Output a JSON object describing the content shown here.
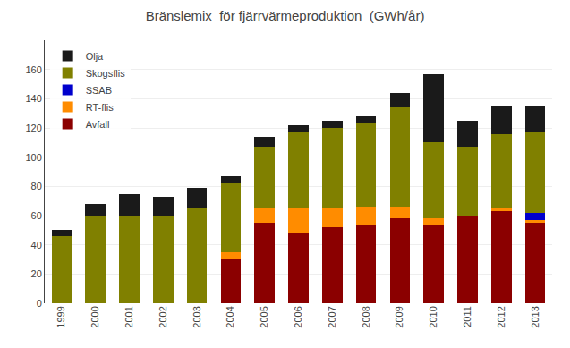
{
  "chart_data": {
    "type": "bar",
    "title": "Bränslemix  för fjärrvärmeproduktion  (GWh/år)",
    "categories": [
      "1999",
      "2000",
      "2001",
      "2002",
      "2003",
      "2004",
      "2005",
      "2006",
      "2007",
      "2008",
      "2009",
      "2010",
      "2011",
      "2012",
      "2013"
    ],
    "series": [
      {
        "name": "Avfall",
        "color": "#8B0000",
        "values": [
          0,
          0,
          0,
          0,
          0,
          30,
          55,
          48,
          52,
          53,
          58,
          53,
          60,
          63,
          55
        ]
      },
      {
        "name": "RT-flis",
        "color": "#FF8C00",
        "values": [
          0,
          0,
          0,
          0,
          0,
          5,
          10,
          17,
          13,
          13,
          8,
          5,
          0,
          2,
          2
        ]
      },
      {
        "name": "SSAB",
        "color": "#0000CD",
        "values": [
          0,
          0,
          0,
          0,
          0,
          0,
          0,
          0,
          0,
          0,
          0,
          0,
          0,
          0,
          5
        ]
      },
      {
        "name": "Skogsflis",
        "color": "#808000",
        "values": [
          46,
          60,
          60,
          60,
          65,
          47,
          42,
          52,
          55,
          57,
          68,
          52,
          47,
          51,
          55
        ]
      },
      {
        "name": "Olja",
        "color": "#1a1a1a",
        "values": [
          4,
          8,
          15,
          13,
          14,
          5,
          7,
          5,
          5,
          5,
          10,
          47,
          18,
          19,
          18
        ]
      }
    ],
    "stacked": true,
    "ylim": [
      0,
      180
    ],
    "yticks": [
      0,
      20,
      40,
      60,
      80,
      100,
      120,
      140,
      160
    ],
    "grid": true,
    "legend": "upper left"
  }
}
